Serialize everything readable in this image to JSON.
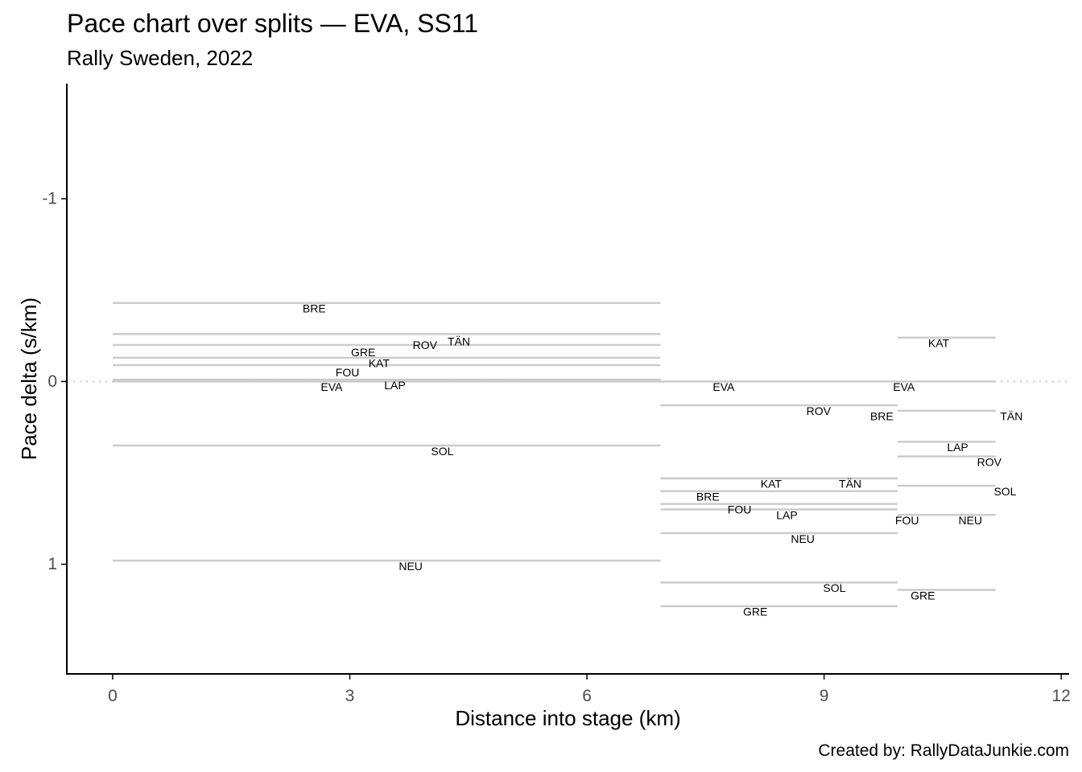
{
  "chart_data": {
    "type": "line",
    "title": "Pace chart over splits — EVA, SS11",
    "subtitle": "Rally Sweden, 2022",
    "caption": "Created by: RallyDataJunkie.com",
    "xlabel": "Distance into stage (km)",
    "ylabel": "Pace delta (s/km)",
    "xlim": [
      -0.58,
      12.1
    ],
    "ylim": [
      1.6,
      -1.63
    ],
    "y_reversed": true,
    "xticks": [
      0,
      3,
      6,
      9,
      12
    ],
    "xtick_labels": [
      "0",
      "3",
      "6",
      "9",
      "12"
    ],
    "yticks": [
      -1,
      0,
      1
    ],
    "ytick_labels": [
      "-1",
      "0",
      "1"
    ],
    "reference_line": {
      "y": 0,
      "style": "dotted"
    },
    "segments": [
      {
        "driver": "BRE",
        "x0": 0,
        "x1": 6.93,
        "y": -0.43
      },
      {
        "driver": "TÄN",
        "x0": 0,
        "x1": 6.93,
        "y": -0.26
      },
      {
        "driver": "ROV",
        "x0": 0,
        "x1": 6.93,
        "y": -0.2
      },
      {
        "driver": "GRE",
        "x0": 0,
        "x1": 6.93,
        "y": -0.13
      },
      {
        "driver": "KAT",
        "x0": 0,
        "x1": 6.93,
        "y": -0.09
      },
      {
        "driver": "FOU",
        "x0": 0,
        "x1": 6.93,
        "y": -0.01
      },
      {
        "driver": "LAP",
        "x0": 0,
        "x1": 6.93,
        "y": -0.005
      },
      {
        "driver": "EVA",
        "x0": 0,
        "x1": 6.93,
        "y": 0
      },
      {
        "driver": "SOL",
        "x0": 0,
        "x1": 6.93,
        "y": 0.35
      },
      {
        "driver": "NEU",
        "x0": 0,
        "x1": 6.93,
        "y": 0.98
      },
      {
        "driver": "EVA",
        "x0": 6.93,
        "x1": 9.93,
        "y": 0
      },
      {
        "driver": "ROV",
        "x0": 6.93,
        "x1": 9.93,
        "y": 0.13
      },
      {
        "driver": "KAT",
        "x0": 6.93,
        "x1": 9.93,
        "y": 0.53
      },
      {
        "driver": "TÄN",
        "x0": 6.93,
        "x1": 9.93,
        "y": 0.53
      },
      {
        "driver": "BRE",
        "x0": 6.93,
        "x1": 9.93,
        "y": 0.6
      },
      {
        "driver": "FOU",
        "x0": 6.93,
        "x1": 9.93,
        "y": 0.67
      },
      {
        "driver": "LAP",
        "x0": 6.93,
        "x1": 9.93,
        "y": 0.7
      },
      {
        "driver": "NEU",
        "x0": 6.93,
        "x1": 9.93,
        "y": 0.83
      },
      {
        "driver": "SOL",
        "x0": 6.93,
        "x1": 9.93,
        "y": 1.1
      },
      {
        "driver": "GRE",
        "x0": 6.93,
        "x1": 9.93,
        "y": 1.23
      },
      {
        "driver": "KAT",
        "x0": 9.93,
        "x1": 11.17,
        "y": -0.24
      },
      {
        "driver": "EVA",
        "x0": 9.93,
        "x1": 11.17,
        "y": 0
      },
      {
        "driver": "BRE",
        "x0": 9.93,
        "x1": 11.17,
        "y": 0.16
      },
      {
        "driver": "LAP",
        "x0": 9.93,
        "x1": 11.17,
        "y": 0.33
      },
      {
        "driver": "ROV",
        "x0": 9.93,
        "x1": 11.17,
        "y": 0.41
      },
      {
        "driver": "TÄN",
        "x0": 9.93,
        "x1": 11.17,
        "y": 0.16
      },
      {
        "driver": "SOL",
        "x0": 9.93,
        "x1": 11.17,
        "y": 0.57
      },
      {
        "driver": "FOU",
        "x0": 9.93,
        "x1": 11.17,
        "y": 0.73
      },
      {
        "driver": "NEU",
        "x0": 9.93,
        "x1": 11.17,
        "y": 0.73
      },
      {
        "driver": "GRE",
        "x0": 9.93,
        "x1": 11.17,
        "y": 1.14
      }
    ],
    "labels": [
      {
        "text": "BRE",
        "x": 2.55,
        "y": -0.4
      },
      {
        "text": "TÄN",
        "x": 4.38,
        "y": -0.22
      },
      {
        "text": "ROV",
        "x": 3.95,
        "y": -0.2
      },
      {
        "text": "GRE",
        "x": 3.17,
        "y": -0.16
      },
      {
        "text": "KAT",
        "x": 3.37,
        "y": -0.1
      },
      {
        "text": "FOU",
        "x": 2.97,
        "y": -0.05
      },
      {
        "text": "LAP",
        "x": 3.57,
        "y": 0.02
      },
      {
        "text": "EVA",
        "x": 2.77,
        "y": 0.03
      },
      {
        "text": "SOL",
        "x": 4.17,
        "y": 0.38
      },
      {
        "text": "NEU",
        "x": 3.77,
        "y": 1.01
      },
      {
        "text": "EVA",
        "x": 7.73,
        "y": 0.03
      },
      {
        "text": "ROV",
        "x": 8.93,
        "y": 0.16
      },
      {
        "text": "KAT",
        "x": 8.33,
        "y": 0.56
      },
      {
        "text": "TÄN",
        "x": 9.33,
        "y": 0.56
      },
      {
        "text": "BRE",
        "x": 7.53,
        "y": 0.63
      },
      {
        "text": "FOU",
        "x": 7.93,
        "y": 0.7
      },
      {
        "text": "LAP",
        "x": 8.53,
        "y": 0.73
      },
      {
        "text": "NEU",
        "x": 8.73,
        "y": 0.86
      },
      {
        "text": "SOL",
        "x": 9.13,
        "y": 1.13
      },
      {
        "text": "GRE",
        "x": 8.13,
        "y": 1.26
      },
      {
        "text": "KAT",
        "x": 10.45,
        "y": -0.21
      },
      {
        "text": "EVA",
        "x": 10.01,
        "y": 0.03
      },
      {
        "text": "BRE",
        "x": 9.73,
        "y": 0.19
      },
      {
        "text": "TÄN",
        "x": 11.37,
        "y": 0.19
      },
      {
        "text": "LAP",
        "x": 10.69,
        "y": 0.36
      },
      {
        "text": "ROV",
        "x": 11.09,
        "y": 0.44
      },
      {
        "text": "SOL",
        "x": 11.29,
        "y": 0.6
      },
      {
        "text": "FOU",
        "x": 10.05,
        "y": 0.76
      },
      {
        "text": "NEU",
        "x": 10.85,
        "y": 0.76
      },
      {
        "text": "GRE",
        "x": 10.25,
        "y": 1.17
      }
    ]
  },
  "colors": {
    "segment": "#cccccc",
    "reference": "#c8c8c8",
    "axis": "#000000",
    "tick_text": "#4d4d4d",
    "text": "#000000"
  }
}
